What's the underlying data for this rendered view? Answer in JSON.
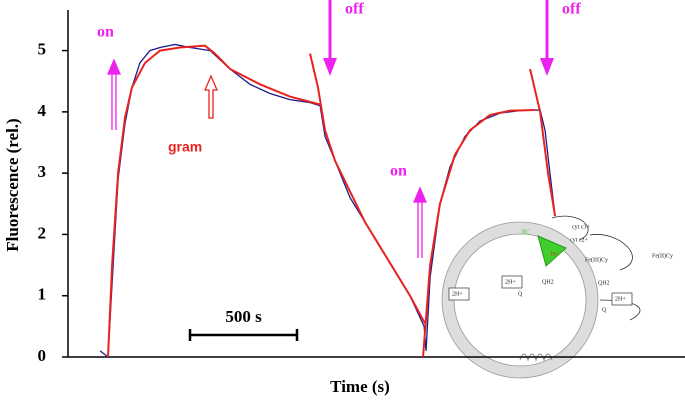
{
  "chart_data": {
    "type": "line",
    "ylabel": "Fluorescence (rel.)",
    "xlabel": "Time (s)",
    "xlim": [
      0,
      2883
    ],
    "ylim": [
      0,
      5.45
    ],
    "yticks": [
      0,
      1,
      2,
      3,
      4,
      5
    ],
    "series": [
      {
        "color": "#1c1c8e",
        "width": 1.3,
        "x": [
          150,
          187,
          206,
          234,
          266,
          299,
          336,
          383,
          430,
          500,
          570,
          664,
          757,
          850,
          944,
          1037,
          1131,
          1178,
          1201,
          1248,
          1318,
          1388,
          1458,
          1528,
          1598,
          1664,
          1673,
          1692,
          1738,
          1785,
          1855,
          1925,
          2019,
          2112,
          2206,
          2229,
          2252,
          2276
        ],
        "values": [
          0.1,
          0.0,
          1.2,
          2.9,
          3.8,
          4.4,
          4.8,
          5.0,
          5.05,
          5.1,
          5.05,
          5.0,
          4.7,
          4.45,
          4.3,
          4.2,
          4.15,
          4.1,
          3.6,
          3.2,
          2.6,
          2.2,
          1.8,
          1.4,
          1.0,
          0.5,
          0.1,
          1.3,
          2.5,
          3.1,
          3.6,
          3.85,
          3.98,
          4.02,
          4.03,
          3.7,
          3.0,
          2.3
        ]
      },
      {
        "color": "#e8231f",
        "width": 2,
        "x": [
          187,
          206,
          234,
          266,
          299,
          360,
          430,
          523,
          640,
          687,
          757,
          897,
          1037,
          1178,
          null,
          1131,
          1168,
          1201,
          1248,
          1318,
          1388,
          1458,
          1528,
          1598,
          1668,
          null,
          1659,
          1692,
          1738,
          1808,
          1878,
          1972,
          2066,
          2183,
          null,
          2159,
          2206,
          2243,
          2276
        ],
        "values": [
          0,
          1.5,
          3.0,
          3.9,
          4.4,
          4.8,
          5.0,
          5.05,
          5.08,
          4.95,
          4.7,
          4.45,
          4.25,
          4.12,
          null,
          4.95,
          4.4,
          3.7,
          3.2,
          2.7,
          2.2,
          1.8,
          1.4,
          1.0,
          0.55,
          null,
          0,
          1.5,
          2.5,
          3.3,
          3.7,
          3.95,
          4.02,
          4.03,
          null,
          4.7,
          4.0,
          3.0,
          2.3
        ]
      }
    ],
    "annotations": [
      "on",
      "off",
      "gram",
      "on",
      "off"
    ],
    "scale_bar": {
      "length": 500,
      "label": "500 s"
    }
  },
  "diagram": {
    "labels": [
      "RC",
      "hν",
      "cyt c3+",
      "cyt c2+",
      "Fe(III)Cy",
      "Fe(II)Cy",
      "QH2",
      "QH2",
      "2H+",
      "2H+",
      "2H+",
      "Q",
      "Q"
    ]
  }
}
